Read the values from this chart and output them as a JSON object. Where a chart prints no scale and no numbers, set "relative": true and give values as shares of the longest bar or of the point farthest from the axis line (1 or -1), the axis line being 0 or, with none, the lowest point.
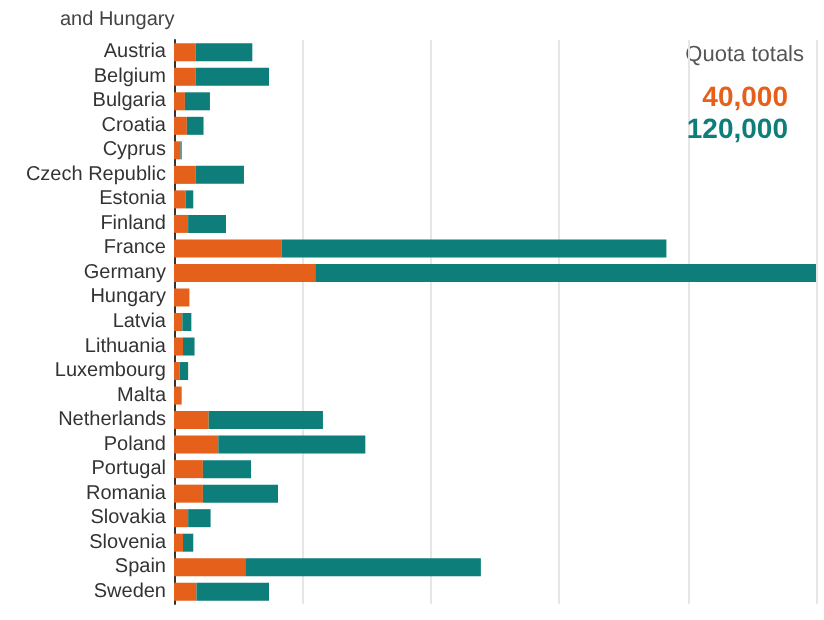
{
  "chart_data": {
    "type": "bar",
    "orientation": "horizontal",
    "stacked": true,
    "relative": true,
    "title": "and Hungary",
    "legend_title": "Quota totals",
    "legend": "top right",
    "grid": "x",
    "categories": [
      "Austria",
      "Belgium",
      "Bulgaria",
      "Croatia",
      "Cyprus",
      "Czech Republic",
      "Estonia",
      "Finland",
      "France",
      "Germany",
      "Hungary",
      "Latvia",
      "Lithuania",
      "Luxembourg",
      "Malta",
      "Netherlands",
      "Poland",
      "Portugal",
      "Romania",
      "Slovakia",
      "Slovenia",
      "Spain",
      "Sweden"
    ],
    "series": [
      {
        "name": "40,000",
        "color": "#e5601a",
        "values": [
          0.034,
          0.034,
          0.017,
          0.02,
          0.01,
          0.034,
          0.018,
          0.022,
          0.168,
          0.22,
          0.024,
          0.013,
          0.014,
          0.009,
          0.012,
          0.054,
          0.069,
          0.045,
          0.045,
          0.022,
          0.014,
          0.111,
          0.035
        ]
      },
      {
        "name": "120,000",
        "color": "#0e7e7b",
        "values": [
          0.088,
          0.114,
          0.039,
          0.026,
          0.002,
          0.075,
          0.012,
          0.059,
          0.599,
          0.78,
          0,
          0.014,
          0.018,
          0.013,
          0,
          0.178,
          0.229,
          0.075,
          0.117,
          0.035,
          0.016,
          0.367,
          0.113
        ]
      }
    ]
  }
}
